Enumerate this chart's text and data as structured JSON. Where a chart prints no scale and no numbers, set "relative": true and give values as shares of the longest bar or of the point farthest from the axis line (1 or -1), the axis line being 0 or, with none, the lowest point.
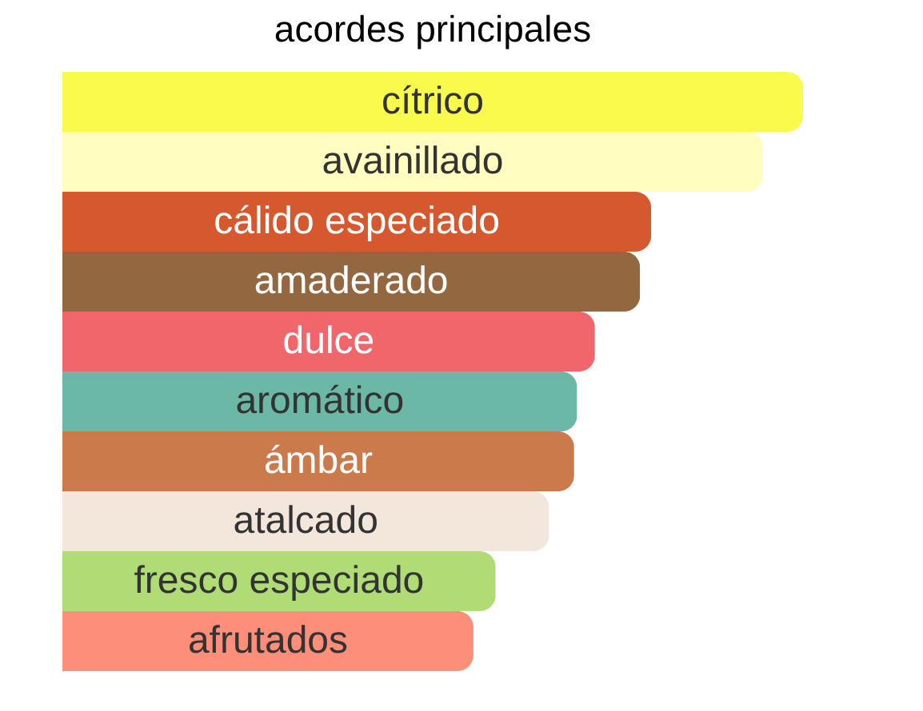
{
  "chart_data": {
    "type": "bar",
    "orientation": "horizontal",
    "relative": true,
    "title": "acordes principales",
    "categories": [
      "cítrico",
      "avainillado",
      "cálido especiado",
      "amaderado",
      "dulce",
      "aromático",
      "ámbar",
      "atalcado",
      "fresco especiado",
      "afrutados"
    ],
    "values": [
      1,
      0.946,
      0.795,
      0.78,
      0.719,
      0.695,
      0.691,
      0.657,
      0.585,
      0.555
    ],
    "colors": [
      "#f9fb4c",
      "#fffec0",
      "#d5582e",
      "#936740",
      "#f1666a",
      "#6bb8a6",
      "#cb7a4c",
      "#f3e6db",
      "#b0dc75",
      "#fd8e79"
    ]
  }
}
